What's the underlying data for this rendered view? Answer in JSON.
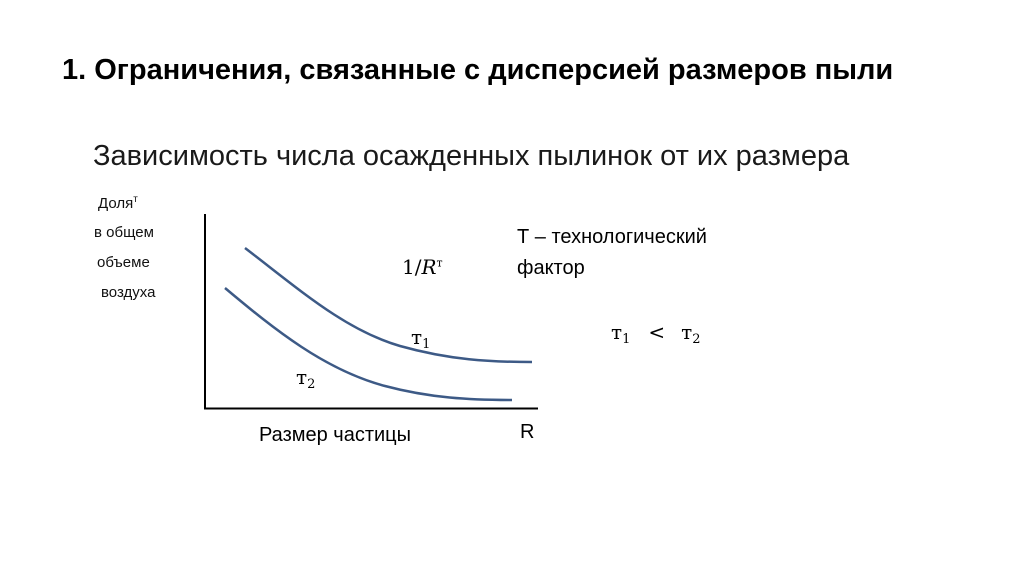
{
  "title": "1. Ограничения, связанные с дисперсией размеров пыли",
  "subtitle": "Зависимость числа осажденных пылинок от их размера",
  "diagram": {
    "y_axis_label": {
      "line1": "Доля",
      "line1_sup": "т",
      "line2": "в общем",
      "line3": "объеме",
      "line4": "воздуха"
    },
    "x_axis_label": "Размер частицы",
    "x_axis_end": "R",
    "formula": {
      "numerator": "1/",
      "var": "R",
      "sup": "т"
    },
    "curve1": {
      "symbol": "т",
      "index": "1"
    },
    "curve2": {
      "symbol": "т",
      "index": "2"
    },
    "note_line1": "Т – технологический",
    "note_line2": "фактор",
    "inequality": {
      "a": "т",
      "a_index": "1",
      "op": "<",
      "b": "т",
      "b_index": "2"
    },
    "curve_color": "#3d5a86",
    "axis_color": "#000000"
  }
}
